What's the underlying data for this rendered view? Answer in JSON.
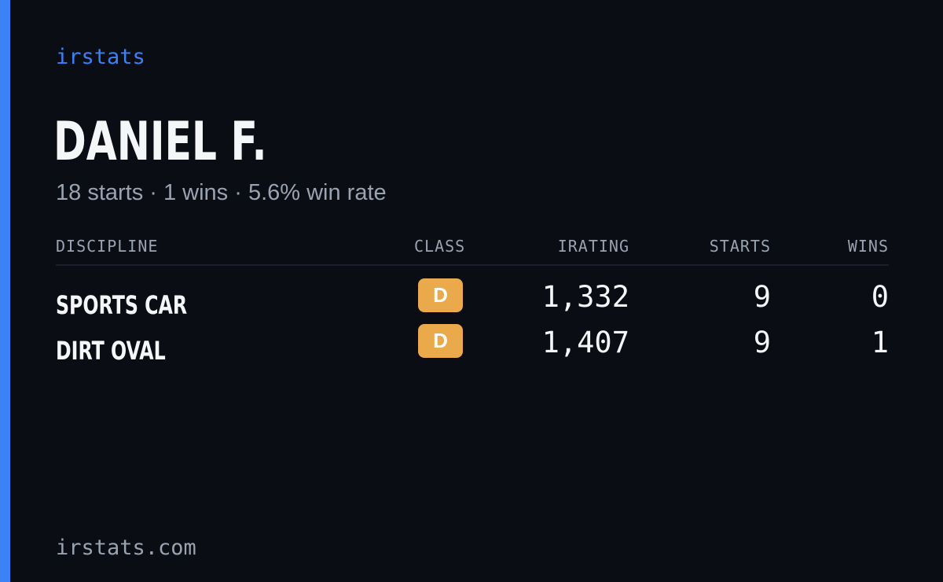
{
  "brand": "irstats",
  "player": {
    "name": "DANIEL F.",
    "summary": "18 starts · 1 wins · 5.6% win rate"
  },
  "table": {
    "headers": {
      "discipline": "DISCIPLINE",
      "class": "CLASS",
      "irating": "IRATING",
      "starts": "STARTS",
      "wins": "WINS"
    },
    "rows": [
      {
        "discipline": "SPORTS CAR",
        "class": "D",
        "irating": "1,332",
        "starts": "9",
        "wins": "0"
      },
      {
        "discipline": "DIRT OVAL",
        "class": "D",
        "irating": "1,407",
        "starts": "9",
        "wins": "1"
      }
    ]
  },
  "footer": {
    "url": "irstats.com"
  },
  "colors": {
    "background": "#0a0d14",
    "accent": "#3b82f6",
    "class_d_badge": "#eaa94a",
    "text_primary": "#f5f6f8",
    "text_muted": "#9aa3b2"
  }
}
